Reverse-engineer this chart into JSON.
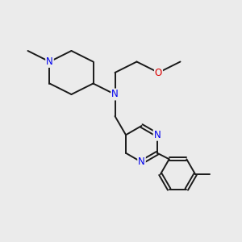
{
  "bg_color": "#ebebeb",
  "bond_color": "#1a1a1a",
  "N_color": "#0000ee",
  "O_color": "#dd0000",
  "bond_width": 1.4,
  "font_size": 8.5,
  "xlim": [
    0,
    10
  ],
  "ylim": [
    0,
    10
  ]
}
